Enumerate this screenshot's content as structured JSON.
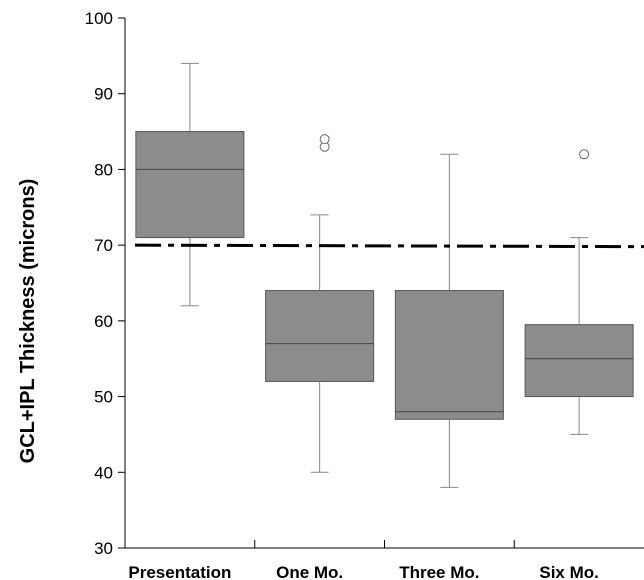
{
  "chart_data": {
    "type": "box",
    "title": "",
    "xlabel": "",
    "ylabel": "GCL+IPL Thickness (microns)",
    "ylim": [
      30,
      100
    ],
    "yticks": [
      "30",
      "40",
      "50",
      "60",
      "70",
      "80",
      "90",
      "100"
    ],
    "categories": [
      "Presentation",
      "One Mo.",
      "Three Mo.",
      "Six Mo."
    ],
    "boxes": [
      {
        "category": "Presentation",
        "whisker_low": 62,
        "q1": 71,
        "median": 80,
        "q3": 85,
        "whisker_high": 94,
        "outliers": []
      },
      {
        "category": "One Mo.",
        "whisker_low": 40,
        "q1": 52,
        "median": 57,
        "q3": 64,
        "whisker_high": 74,
        "outliers": [
          83,
          84
        ]
      },
      {
        "category": "Three Mo.",
        "whisker_low": 38,
        "q1": 47,
        "median": 48,
        "q3": 64,
        "whisker_high": 82,
        "outliers": []
      },
      {
        "category": "Six Mo.",
        "whisker_low": 45,
        "q1": 50,
        "median": 55,
        "q3": 59.5,
        "whisker_high": 71,
        "outliers": [
          82
        ]
      }
    ],
    "reference_line": {
      "y": 70,
      "style": "dash-dot"
    },
    "colors": {
      "box_fill": "#8c8c8c",
      "box_stroke": "#555555",
      "whisker": "#888888",
      "reference": "#000000"
    },
    "grid": false,
    "legend": "none"
  }
}
